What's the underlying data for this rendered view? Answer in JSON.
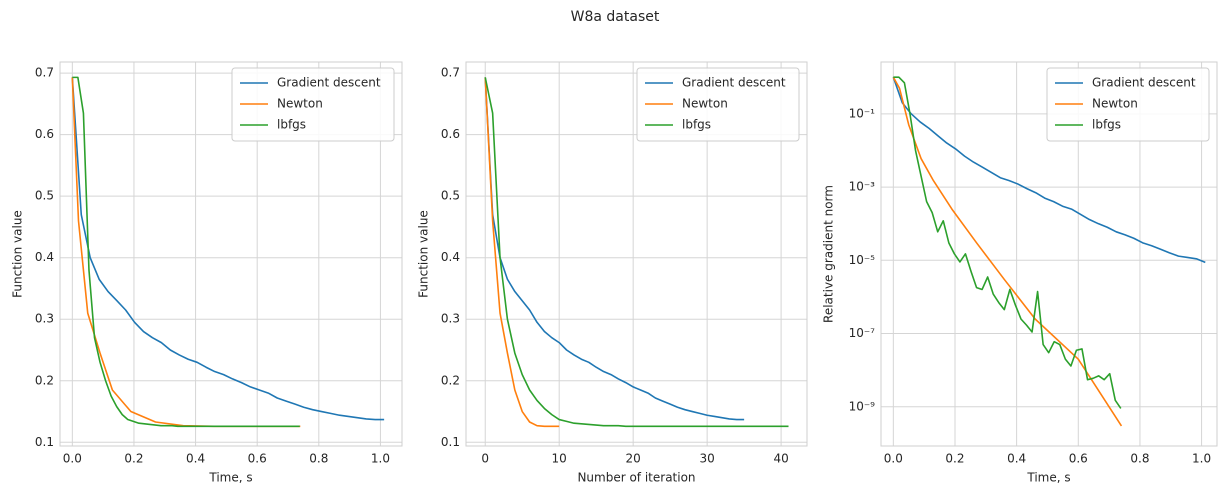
{
  "title": "W8a dataset",
  "chart_data": [
    {
      "type": "line",
      "xlabel": "Time, s",
      "ylabel": "Function value",
      "xlim": [
        -0.04,
        1.07
      ],
      "ylim": [
        0.094,
        0.718
      ],
      "xticks": [
        {
          "value": 0,
          "label": "0.0"
        },
        0.2,
        0.4,
        0.6,
        0.8,
        {
          "value": 1,
          "label": "1.0"
        }
      ],
      "yticks": [
        0.1,
        0.2,
        0.3,
        0.4,
        0.5,
        0.6,
        0.7
      ],
      "grid": true,
      "legend": "upper right",
      "series": [
        {
          "name": "Gradient descent",
          "color": "#1f77b4",
          "x": [
            0,
            0.029,
            0.058,
            0.087,
            0.116,
            0.145,
            0.173,
            0.202,
            0.231,
            0.26,
            0.289,
            0.318,
            0.347,
            0.376,
            0.405,
            0.434,
            0.462,
            0.491,
            0.52,
            0.549,
            0.578,
            0.607,
            0.636,
            0.665,
            0.694,
            0.723,
            0.751,
            0.78,
            0.809,
            0.838,
            0.867,
            0.896,
            0.925,
            0.954,
            0.983,
            1.012
          ],
          "values": [
            0.693,
            0.47,
            0.4,
            0.365,
            0.345,
            0.33,
            0.315,
            0.295,
            0.28,
            0.27,
            0.262,
            0.25,
            0.242,
            0.235,
            0.23,
            0.222,
            0.215,
            0.21,
            0.203,
            0.197,
            0.19,
            0.185,
            0.18,
            0.172,
            0.167,
            0.162,
            0.157,
            0.153,
            0.15,
            0.147,
            0.144,
            0.142,
            0.14,
            0.138,
            0.137,
            0.137
          ]
        },
        {
          "name": "Newton",
          "color": "#ff7f0e",
          "x": [
            0,
            0.02,
            0.05,
            0.09,
            0.13,
            0.19,
            0.27,
            0.36,
            0.46,
            0.6,
            0.74
          ],
          "values": [
            0.693,
            0.46,
            0.31,
            0.245,
            0.185,
            0.15,
            0.133,
            0.127,
            0.126,
            0.126,
            0.126
          ]
        },
        {
          "name": "lbfgs",
          "color": "#2ca02c",
          "x": [
            0,
            0.018,
            0.036,
            0.054,
            0.072,
            0.09,
            0.108,
            0.126,
            0.144,
            0.162,
            0.18,
            0.198,
            0.216,
            0.234,
            0.252,
            0.27,
            0.288,
            0.306,
            0.324,
            0.342,
            0.36,
            0.378,
            0.396,
            0.414,
            0.432,
            0.45,
            0.468,
            0.486,
            0.504,
            0.522,
            0.54,
            0.558,
            0.576,
            0.594,
            0.612,
            0.63,
            0.648,
            0.666,
            0.684,
            0.702,
            0.72,
            0.738
          ],
          "values": [
            0.693,
            0.693,
            0.635,
            0.38,
            0.27,
            0.23,
            0.2,
            0.175,
            0.158,
            0.145,
            0.137,
            0.134,
            0.131,
            0.13,
            0.129,
            0.128,
            0.127,
            0.127,
            0.127,
            0.126,
            0.126,
            0.126,
            0.126,
            0.126,
            0.126,
            0.126,
            0.126,
            0.126,
            0.126,
            0.126,
            0.126,
            0.126,
            0.126,
            0.126,
            0.126,
            0.126,
            0.126,
            0.126,
            0.126,
            0.126,
            0.126,
            0.126
          ]
        }
      ]
    },
    {
      "type": "line",
      "xlabel": "Number of iteration",
      "ylabel": "Function value",
      "xlim": [
        -2.6,
        43.5
      ],
      "ylim": [
        0.094,
        0.718
      ],
      "xticks": [
        0,
        10,
        20,
        30,
        40
      ],
      "yticks": [
        0.1,
        0.2,
        0.3,
        0.4,
        0.5,
        0.6,
        0.7
      ],
      "grid": true,
      "legend": "upper right",
      "series": [
        {
          "name": "Gradient descent",
          "color": "#1f77b4",
          "x": [
            0,
            1,
            2,
            3,
            4,
            5,
            6,
            7,
            8,
            9,
            10,
            11,
            12,
            13,
            14,
            15,
            16,
            17,
            18,
            19,
            20,
            21,
            22,
            23,
            24,
            25,
            26,
            27,
            28,
            29,
            30,
            31,
            32,
            33,
            34,
            35
          ],
          "values": [
            0.693,
            0.47,
            0.4,
            0.365,
            0.345,
            0.33,
            0.315,
            0.295,
            0.28,
            0.27,
            0.262,
            0.25,
            0.242,
            0.235,
            0.23,
            0.222,
            0.215,
            0.21,
            0.203,
            0.197,
            0.19,
            0.185,
            0.18,
            0.172,
            0.167,
            0.162,
            0.157,
            0.153,
            0.15,
            0.147,
            0.144,
            0.142,
            0.14,
            0.138,
            0.137,
            0.137
          ]
        },
        {
          "name": "Newton",
          "color": "#ff7f0e",
          "x": [
            0,
            1,
            2,
            3,
            4,
            5,
            6,
            7,
            8,
            9,
            10
          ],
          "values": [
            0.693,
            0.46,
            0.31,
            0.245,
            0.185,
            0.15,
            0.133,
            0.127,
            0.126,
            0.126,
            0.126
          ]
        },
        {
          "name": "lbfgs",
          "color": "#2ca02c",
          "x": [
            0,
            1,
            2,
            3,
            4,
            5,
            6,
            7,
            8,
            9,
            10,
            11,
            12,
            13,
            14,
            15,
            16,
            17,
            18,
            19,
            20,
            21,
            22,
            23,
            24,
            25,
            26,
            27,
            28,
            29,
            30,
            31,
            32,
            33,
            34,
            35,
            36,
            37,
            38,
            39,
            40,
            41
          ],
          "values": [
            0.693,
            0.635,
            0.4,
            0.3,
            0.245,
            0.21,
            0.185,
            0.168,
            0.155,
            0.145,
            0.137,
            0.134,
            0.131,
            0.13,
            0.129,
            0.128,
            0.127,
            0.127,
            0.127,
            0.126,
            0.126,
            0.126,
            0.126,
            0.126,
            0.126,
            0.126,
            0.126,
            0.126,
            0.126,
            0.126,
            0.126,
            0.126,
            0.126,
            0.126,
            0.126,
            0.126,
            0.126,
            0.126,
            0.126,
            0.126,
            0.126,
            0.126
          ]
        }
      ]
    },
    {
      "type": "line",
      "xlabel": "Time, s",
      "ylabel": "Relative gradient norm",
      "xlim": [
        -0.04,
        1.05
      ],
      "ylim": [
        8.5e-11,
        2.6
      ],
      "yscale": "log",
      "xticks": [
        {
          "value": 0,
          "label": "0.0"
        },
        0.2,
        0.4,
        0.6,
        0.8,
        {
          "value": 1,
          "label": "1.0"
        }
      ],
      "yticks": [
        {
          "value": 1e-09,
          "label": "10⁻⁹"
        },
        {
          "value": 1e-07,
          "label": "10⁻⁷"
        },
        {
          "value": 1e-05,
          "label": "10⁻⁵"
        },
        {
          "value": 0.001,
          "label": "10⁻³"
        },
        {
          "value": 0.1,
          "label": "10⁻¹"
        }
      ],
      "grid": true,
      "legend": "upper right",
      "series": [
        {
          "name": "Gradient descent",
          "color": "#1f77b4",
          "x": [
            0,
            0.029,
            0.058,
            0.087,
            0.116,
            0.145,
            0.173,
            0.202,
            0.231,
            0.26,
            0.289,
            0.318,
            0.347,
            0.376,
            0.405,
            0.434,
            0.462,
            0.491,
            0.52,
            0.549,
            0.578,
            0.607,
            0.636,
            0.665,
            0.694,
            0.723,
            0.751,
            0.78,
            0.809,
            0.838,
            0.867,
            0.896,
            0.925,
            0.954,
            0.983,
            1.012
          ],
          "values": [
            1,
            0.2,
            0.1,
            0.06,
            0.04,
            0.025,
            0.016,
            0.011,
            0.007,
            0.0048,
            0.0035,
            0.0025,
            0.0018,
            0.0015,
            0.0012,
            0.0009,
            0.0007,
            0.0005,
            0.0004,
            0.0003,
            0.00025,
            0.00018,
            0.00013,
            0.0001,
            8e-05,
            6e-05,
            5e-05,
            4e-05,
            3e-05,
            2.5e-05,
            2e-05,
            1.6e-05,
            1.3e-05,
            1.2e-05,
            1.1e-05,
            8.8e-06
          ]
        },
        {
          "name": "Newton",
          "color": "#ff7f0e",
          "x": [
            0,
            0.02,
            0.05,
            0.09,
            0.13,
            0.19,
            0.27,
            0.36,
            0.46,
            0.6,
            0.74
          ],
          "values": [
            1,
            0.5,
            0.05,
            0.006,
            0.0015,
            0.00025,
            3e-05,
            3e-06,
            2.5e-07,
            2e-08,
            3e-10
          ]
        },
        {
          "name": "lbfgs",
          "color": "#2ca02c",
          "x": [
            0,
            0.018,
            0.036,
            0.054,
            0.072,
            0.09,
            0.108,
            0.126,
            0.144,
            0.162,
            0.18,
            0.198,
            0.216,
            0.234,
            0.252,
            0.27,
            0.288,
            0.306,
            0.324,
            0.342,
            0.36,
            0.378,
            0.396,
            0.414,
            0.432,
            0.45,
            0.468,
            0.486,
            0.504,
            0.522,
            0.54,
            0.558,
            0.576,
            0.594,
            0.612,
            0.63,
            0.648,
            0.666,
            0.684,
            0.702,
            0.72,
            0.738
          ],
          "values": [
            1,
            1,
            0.7,
            0.1,
            0.01,
            0.002,
            0.0004,
            0.0002,
            6e-05,
            0.00012,
            3e-05,
            1.5e-05,
            9e-06,
            1.5e-05,
            5e-06,
            1.8e-06,
            1.6e-06,
            3.5e-06,
            1.2e-06,
            7e-07,
            4.5e-07,
            1.6e-06,
            6e-07,
            2.5e-07,
            1.7e-07,
            1.1e-07,
            1.4e-06,
            5e-08,
            3e-08,
            6e-08,
            5e-08,
            2e-08,
            1.3e-08,
            3.5e-08,
            3.8e-08,
            5.5e-09,
            6e-09,
            7e-09,
            5.5e-09,
            8e-09,
            1.5e-09,
            9e-10
          ]
        }
      ]
    }
  ]
}
